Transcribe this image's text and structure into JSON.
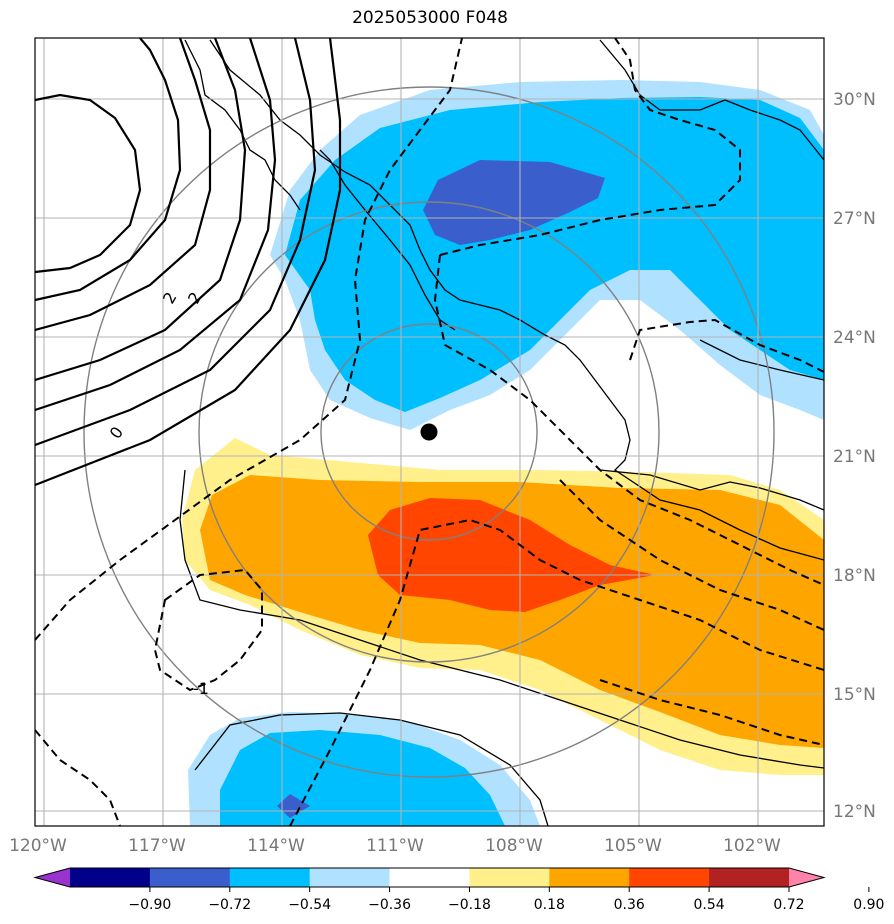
{
  "title": "2025053000 F048",
  "map": {
    "lon_labels": [
      "120°W",
      "117°W",
      "114°W",
      "111°W",
      "108°W",
      "105°W",
      "102°W"
    ],
    "lat_labels": [
      "30°N",
      "27°N",
      "24°N",
      "21°N",
      "18°N",
      "15°N",
      "12°N"
    ],
    "contour_labels": [
      "2",
      "2",
      "0",
      "-1"
    ],
    "center_marker": "storm-center"
  },
  "colorbar": {
    "ticks": [
      "−0.90",
      "−0.72",
      "−0.54",
      "−0.36",
      "−0.18",
      "0.18",
      "0.36",
      "0.54",
      "0.72",
      "0.90"
    ],
    "colors": [
      "#9a32cd",
      "#00008b",
      "#3a5fcd",
      "#00bfff",
      "#b0e2ff",
      "#ffffff",
      "#fff08c",
      "#ffa500",
      "#ff4500",
      "#b22222",
      "#ff82ab"
    ]
  }
}
